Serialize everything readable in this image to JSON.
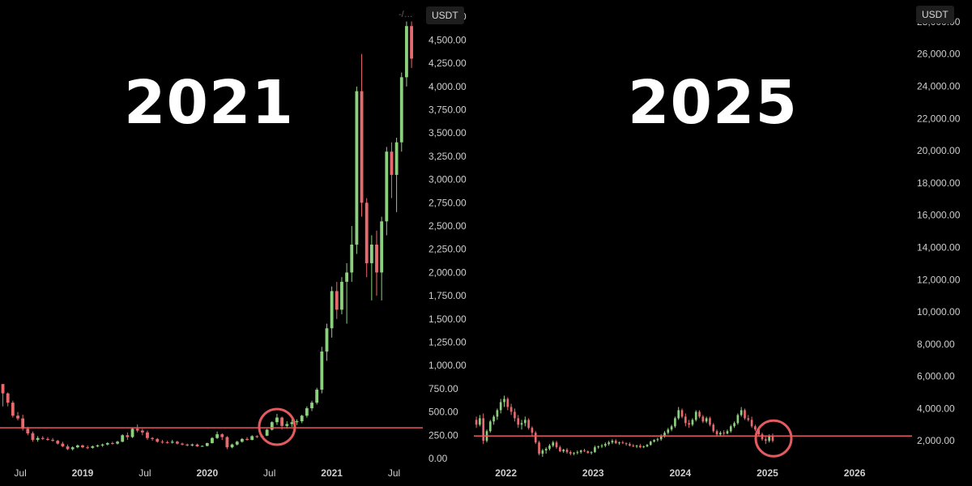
{
  "left": {
    "big_label": "2021",
    "currency": "USDT",
    "menu_text": "-/…",
    "chart_data": {
      "type": "candlestick",
      "ylim": [
        0,
        4800
      ],
      "y_ticks": [
        0,
        250,
        500,
        750,
        1000,
        1250,
        1500,
        1750,
        2000,
        2250,
        2500,
        2750,
        3000,
        3250,
        3500,
        3750,
        4000,
        4250,
        4500,
        4750
      ],
      "y_tick_labels": [
        "0.00",
        "250.00",
        "500.00",
        "750.00",
        "1,000.00",
        "1,250.00",
        "1,500.00",
        "1,750.00",
        "2,000.00",
        "2,250.00",
        "2,500.00",
        "2,750.00",
        "3,000.00",
        "3,250.00",
        "3,500.00",
        "3,750.00",
        "4,000.00",
        "4,250.00",
        "4,500.00",
        "4,750.00"
      ],
      "x_labels": [
        "Jul",
        "2019",
        "Jul",
        "2020",
        "Jul",
        "2021",
        "Jul"
      ],
      "x_label_times": [
        2018.5,
        2019.0,
        2019.5,
        2020.0,
        2020.5,
        2021.0,
        2021.5
      ],
      "xlim": [
        2018.35,
        2021.75
      ],
      "support_level": 330,
      "circle_center": {
        "t": 2020.56,
        "price": 340
      },
      "up_color": "#8ccf7e",
      "down_color": "#e86a6e",
      "line_color": "#e35a5f",
      "candles": [
        [
          2018.36,
          800,
          800,
          560,
          700
        ],
        [
          2018.4,
          700,
          710,
          560,
          600
        ],
        [
          2018.44,
          600,
          620,
          440,
          460
        ],
        [
          2018.48,
          460,
          500,
          410,
          430
        ],
        [
          2018.52,
          430,
          470,
          300,
          320
        ],
        [
          2018.56,
          320,
          340,
          250,
          270
        ],
        [
          2018.6,
          270,
          290,
          180,
          200
        ],
        [
          2018.64,
          200,
          240,
          180,
          220
        ],
        [
          2018.68,
          220,
          240,
          200,
          210
        ],
        [
          2018.72,
          210,
          230,
          190,
          200
        ],
        [
          2018.76,
          200,
          220,
          180,
          190
        ],
        [
          2018.8,
          190,
          200,
          150,
          160
        ],
        [
          2018.84,
          160,
          180,
          120,
          130
        ],
        [
          2018.88,
          130,
          150,
          90,
          100
        ],
        [
          2018.92,
          100,
          130,
          85,
          120
        ],
        [
          2018.96,
          120,
          150,
          110,
          140
        ],
        [
          2019.0,
          140,
          150,
          110,
          120
        ],
        [
          2019.04,
          120,
          140,
          100,
          115
        ],
        [
          2019.08,
          115,
          140,
          105,
          130
        ],
        [
          2019.12,
          130,
          150,
          120,
          140
        ],
        [
          2019.16,
          140,
          160,
          125,
          150
        ],
        [
          2019.2,
          150,
          175,
          140,
          165
        ],
        [
          2019.24,
          165,
          180,
          150,
          160
        ],
        [
          2019.28,
          160,
          190,
          150,
          180
        ],
        [
          2019.32,
          180,
          260,
          175,
          250
        ],
        [
          2019.36,
          250,
          280,
          200,
          230
        ],
        [
          2019.4,
          230,
          330,
          220,
          320
        ],
        [
          2019.44,
          320,
          365,
          280,
          300
        ],
        [
          2019.48,
          300,
          320,
          250,
          280
        ],
        [
          2019.52,
          280,
          300,
          200,
          220
        ],
        [
          2019.56,
          220,
          230,
          190,
          210
        ],
        [
          2019.6,
          210,
          220,
          170,
          180
        ],
        [
          2019.64,
          180,
          200,
          160,
          175
        ],
        [
          2019.68,
          175,
          190,
          160,
          170
        ],
        [
          2019.72,
          170,
          200,
          160,
          180
        ],
        [
          2019.76,
          180,
          190,
          150,
          160
        ],
        [
          2019.8,
          160,
          170,
          140,
          150
        ],
        [
          2019.84,
          150,
          160,
          130,
          140
        ],
        [
          2019.88,
          140,
          160,
          130,
          150
        ],
        [
          2019.92,
          150,
          160,
          125,
          130
        ],
        [
          2019.96,
          130,
          140,
          125,
          135
        ],
        [
          2020.0,
          135,
          170,
          130,
          165
        ],
        [
          2020.04,
          165,
          230,
          160,
          220
        ],
        [
          2020.08,
          220,
          290,
          210,
          260
        ],
        [
          2020.12,
          260,
          270,
          200,
          230
        ],
        [
          2020.16,
          230,
          240,
          100,
          120
        ],
        [
          2020.2,
          120,
          160,
          110,
          150
        ],
        [
          2020.24,
          150,
          190,
          140,
          180
        ],
        [
          2020.28,
          180,
          220,
          170,
          210
        ],
        [
          2020.32,
          210,
          230,
          190,
          200
        ],
        [
          2020.36,
          200,
          250,
          195,
          240
        ],
        [
          2020.4,
          240,
          250,
          220,
          230
        ],
        [
          2020.44,
          230,
          260,
          220,
          245
        ],
        [
          2020.48,
          245,
          320,
          240,
          310
        ],
        [
          2020.52,
          310,
          400,
          300,
          390
        ],
        [
          2020.56,
          390,
          480,
          360,
          440
        ],
        [
          2020.6,
          440,
          450,
          310,
          350
        ],
        [
          2020.64,
          350,
          400,
          320,
          370
        ],
        [
          2020.68,
          370,
          420,
          340,
          390
        ],
        [
          2020.72,
          390,
          420,
          360,
          400
        ],
        [
          2020.76,
          400,
          470,
          380,
          460
        ],
        [
          2020.8,
          460,
          560,
          440,
          540
        ],
        [
          2020.84,
          540,
          620,
          510,
          600
        ],
        [
          2020.88,
          600,
          760,
          580,
          740
        ],
        [
          2020.92,
          740,
          1200,
          700,
          1150
        ],
        [
          2020.96,
          1150,
          1450,
          1050,
          1400
        ],
        [
          2021.0,
          1400,
          1850,
          1300,
          1800
        ],
        [
          2021.04,
          1800,
          1900,
          1500,
          1600
        ],
        [
          2021.08,
          1600,
          1950,
          1550,
          1900
        ],
        [
          2021.12,
          1900,
          2100,
          1450,
          2000
        ],
        [
          2021.16,
          2000,
          2500,
          1900,
          2300
        ],
        [
          2021.2,
          2300,
          4000,
          2200,
          3950
        ],
        [
          2021.24,
          3950,
          4350,
          2600,
          2750
        ],
        [
          2021.28,
          2750,
          2800,
          1950,
          2100
        ],
        [
          2021.32,
          2100,
          2400,
          1700,
          2300
        ],
        [
          2021.36,
          2300,
          2450,
          1750,
          2000
        ],
        [
          2021.4,
          2000,
          2600,
          1700,
          2550
        ],
        [
          2021.44,
          2550,
          3350,
          2400,
          3300
        ],
        [
          2021.48,
          3300,
          3400,
          2800,
          3050
        ],
        [
          2021.52,
          3050,
          3450,
          2650,
          3400
        ],
        [
          2021.56,
          3400,
          4150,
          3300,
          4100
        ],
        [
          2021.6,
          4100,
          4700,
          4000,
          4650
        ],
        [
          2021.64,
          4650,
          4700,
          4200,
          4300
        ]
      ]
    }
  },
  "right": {
    "big_label": "2025",
    "currency": "USDT",
    "chart_data": {
      "type": "candlestick",
      "ylim": [
        0,
        28600
      ],
      "y_ticks": [
        2000,
        4000,
        6000,
        8000,
        10000,
        12000,
        14000,
        16000,
        18000,
        20000,
        22000,
        24000,
        26000,
        28000
      ],
      "y_tick_labels": [
        "2,000.00",
        "4,000.00",
        "6,000.00",
        "8,000.00",
        "10,000.00",
        "12,000.00",
        "14,000.00",
        "16,000.00",
        "18,000.00",
        "20,000.00",
        "22,000.00",
        "24,000.00",
        "26,000.00",
        "28,000.00"
      ],
      "x_labels": [
        "2022",
        "2023",
        "2024",
        "2025",
        "2026"
      ],
      "x_label_times": [
        2022.0,
        2023.0,
        2024.0,
        2025.0,
        2026.0
      ],
      "xlim": [
        2021.65,
        2026.65
      ],
      "support_level": 2300,
      "circle_center": {
        "t": 2025.07,
        "price": 2150
      },
      "up_color": "#8ccf7e",
      "down_color": "#e86a6e",
      "line_color": "#e35a5f",
      "candles": [
        [
          2021.66,
          3300,
          3500,
          2800,
          3000
        ],
        [
          2021.7,
          3000,
          3600,
          2900,
          3400
        ],
        [
          2021.74,
          3400,
          3700,
          1800,
          2000
        ],
        [
          2021.78,
          2000,
          2700,
          1900,
          2600
        ],
        [
          2021.82,
          2600,
          3300,
          2500,
          3200
        ],
        [
          2021.86,
          3200,
          3600,
          3000,
          3500
        ],
        [
          2021.9,
          3500,
          4000,
          3300,
          3900
        ],
        [
          2021.94,
          3900,
          4600,
          3700,
          4400
        ],
        [
          2021.98,
          4400,
          4800,
          4100,
          4600
        ],
        [
          2022.02,
          4600,
          4700,
          3900,
          4100
        ],
        [
          2022.06,
          4100,
          4300,
          3600,
          3800
        ],
        [
          2022.1,
          3800,
          4000,
          3200,
          3400
        ],
        [
          2022.14,
          3400,
          3600,
          2800,
          3000
        ],
        [
          2022.18,
          3000,
          3300,
          2700,
          3100
        ],
        [
          2022.22,
          3100,
          3500,
          2900,
          3300
        ],
        [
          2022.26,
          3300,
          3400,
          2700,
          2800
        ],
        [
          2022.3,
          2800,
          2900,
          2300,
          2500
        ],
        [
          2022.34,
          2500,
          2600,
          1800,
          1900
        ],
        [
          2022.38,
          1900,
          2000,
          1100,
          1200
        ],
        [
          2022.42,
          1200,
          1500,
          1000,
          1400
        ],
        [
          2022.46,
          1400,
          1600,
          1200,
          1500
        ],
        [
          2022.5,
          1500,
          1800,
          1400,
          1700
        ],
        [
          2022.54,
          1700,
          2000,
          1600,
          1900
        ],
        [
          2022.58,
          1900,
          2000,
          1500,
          1600
        ],
        [
          2022.62,
          1600,
          1700,
          1300,
          1350
        ],
        [
          2022.66,
          1350,
          1500,
          1250,
          1450
        ],
        [
          2022.7,
          1450,
          1550,
          1200,
          1300
        ],
        [
          2022.74,
          1300,
          1400,
          1100,
          1200
        ],
        [
          2022.78,
          1200,
          1300,
          1100,
          1250
        ],
        [
          2022.82,
          1250,
          1400,
          1150,
          1300
        ],
        [
          2022.86,
          1300,
          1450,
          1200,
          1400
        ],
        [
          2022.9,
          1400,
          1500,
          1300,
          1350
        ],
        [
          2022.94,
          1350,
          1400,
          1200,
          1250
        ],
        [
          2022.98,
          1250,
          1350,
          1150,
          1300
        ],
        [
          2023.02,
          1300,
          1700,
          1250,
          1600
        ],
        [
          2023.06,
          1600,
          1700,
          1500,
          1650
        ],
        [
          2023.1,
          1650,
          1800,
          1550,
          1700
        ],
        [
          2023.14,
          1700,
          1900,
          1600,
          1800
        ],
        [
          2023.18,
          1800,
          2000,
          1700,
          1900
        ],
        [
          2023.22,
          1900,
          2100,
          1800,
          2000
        ],
        [
          2023.26,
          2000,
          2100,
          1800,
          1850
        ],
        [
          2023.3,
          1850,
          1950,
          1750,
          1900
        ],
        [
          2023.34,
          1900,
          2000,
          1800,
          1850
        ],
        [
          2023.38,
          1850,
          1900,
          1700,
          1800
        ],
        [
          2023.42,
          1800,
          1900,
          1650,
          1700
        ],
        [
          2023.46,
          1700,
          1800,
          1600,
          1650
        ],
        [
          2023.5,
          1650,
          1750,
          1550,
          1700
        ],
        [
          2023.54,
          1700,
          1800,
          1550,
          1600
        ],
        [
          2023.58,
          1600,
          1700,
          1550,
          1650
        ],
        [
          2023.62,
          1650,
          1800,
          1600,
          1750
        ],
        [
          2023.66,
          1750,
          2000,
          1700,
          1950
        ],
        [
          2023.7,
          1950,
          2100,
          1900,
          2050
        ],
        [
          2023.74,
          2050,
          2200,
          1950,
          2100
        ],
        [
          2023.78,
          2100,
          2400,
          2000,
          2300
        ],
        [
          2023.82,
          2300,
          2600,
          2200,
          2500
        ],
        [
          2023.86,
          2500,
          2800,
          2400,
          2700
        ],
        [
          2023.9,
          2700,
          3000,
          2600,
          2900
        ],
        [
          2023.94,
          2900,
          3500,
          2800,
          3400
        ],
        [
          2023.98,
          3400,
          4100,
          3300,
          3900
        ],
        [
          2024.02,
          3900,
          4000,
          3400,
          3500
        ],
        [
          2024.06,
          3500,
          3700,
          2900,
          3100
        ],
        [
          2024.1,
          3100,
          3300,
          2800,
          3000
        ],
        [
          2024.14,
          3000,
          3400,
          2900,
          3300
        ],
        [
          2024.18,
          3300,
          3900,
          3200,
          3800
        ],
        [
          2024.22,
          3800,
          3900,
          3400,
          3500
        ],
        [
          2024.26,
          3500,
          3600,
          3100,
          3200
        ],
        [
          2024.3,
          3200,
          3500,
          3100,
          3400
        ],
        [
          2024.34,
          3400,
          3500,
          2900,
          3000
        ],
        [
          2024.38,
          3000,
          3100,
          2500,
          2600
        ],
        [
          2024.42,
          2600,
          2700,
          2300,
          2400
        ],
        [
          2024.46,
          2400,
          2600,
          2300,
          2500
        ],
        [
          2024.5,
          2500,
          2650,
          2350,
          2450
        ],
        [
          2024.54,
          2450,
          2700,
          2400,
          2600
        ],
        [
          2024.58,
          2600,
          3000,
          2500,
          2900
        ],
        [
          2024.62,
          2900,
          3200,
          2800,
          3100
        ],
        [
          2024.66,
          3100,
          3700,
          3000,
          3600
        ],
        [
          2024.7,
          3600,
          4100,
          3500,
          3900
        ],
        [
          2024.74,
          3900,
          4000,
          3300,
          3400
        ],
        [
          2024.78,
          3400,
          3600,
          3200,
          3300
        ],
        [
          2024.82,
          3300,
          3500,
          2800,
          2900
        ],
        [
          2024.86,
          2900,
          3000,
          2600,
          2700
        ],
        [
          2024.9,
          2700,
          2800,
          2300,
          2400
        ],
        [
          2024.94,
          2400,
          2500,
          2000,
          2100
        ],
        [
          2024.98,
          2100,
          2300,
          1800,
          2000
        ],
        [
          2025.02,
          2000,
          2400,
          1900,
          2300
        ],
        [
          2025.06,
          2300,
          2450,
          1900,
          2000
        ]
      ]
    }
  }
}
